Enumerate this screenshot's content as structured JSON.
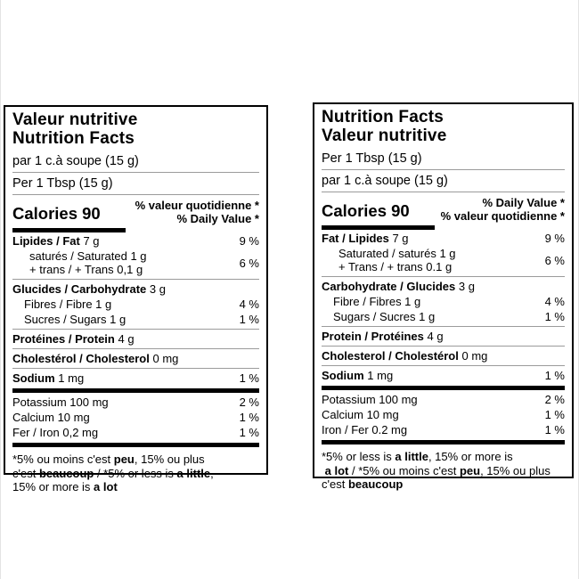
{
  "colors": {
    "background": "#ffffff",
    "label_border": "#000000",
    "thin_rule": "#9b9b9b",
    "thick_rule": "#000000",
    "text": "#000000"
  },
  "labels": [
    {
      "id": "french-first",
      "title_lines": [
        "Valeur nutritive",
        "Nutrition Facts"
      ],
      "serving_lines": [
        "par 1 c.à soupe (15 g)",
        "Per 1 Tbsp (15 g)"
      ],
      "calories": "Calories 90",
      "dv_header_lines": [
        "% valeur quotidienne *",
        "% Daily Value *"
      ],
      "rows": [
        {
          "kind": "nutrient",
          "indent": 0,
          "parts": [
            {
              "t": "Lipides / Fat",
              "b": true
            },
            {
              "t": " 7 g"
            }
          ],
          "value": "9 %"
        },
        {
          "kind": "nutrient2",
          "indent": 2,
          "lines": [
            "saturés / Saturated 1 g",
            "+ trans / + Trans 0,1 g"
          ],
          "value": "6 %"
        },
        {
          "kind": "rule-thin"
        },
        {
          "kind": "nutrient",
          "indent": 0,
          "parts": [
            {
              "t": "Glucides / Carbohydrate",
              "b": true
            },
            {
              "t": " 3 g"
            }
          ],
          "value": ""
        },
        {
          "kind": "nutrient",
          "indent": 1,
          "parts": [
            {
              "t": "Fibres / Fibre 1 g"
            }
          ],
          "value": "4 %"
        },
        {
          "kind": "nutrient",
          "indent": 1,
          "parts": [
            {
              "t": "Sucres / Sugars 1 g"
            }
          ],
          "value": "1 %"
        },
        {
          "kind": "rule-thin"
        },
        {
          "kind": "nutrient",
          "indent": 0,
          "parts": [
            {
              "t": "Protéines / Protein",
              "b": true
            },
            {
              "t": " 4 g"
            }
          ],
          "value": ""
        },
        {
          "kind": "rule-thin"
        },
        {
          "kind": "nutrient",
          "indent": 0,
          "parts": [
            {
              "t": "Cholestérol / Cholesterol",
              "b": true
            },
            {
              "t": " 0 mg"
            }
          ],
          "value": ""
        },
        {
          "kind": "rule-thin"
        },
        {
          "kind": "nutrient",
          "indent": 0,
          "parts": [
            {
              "t": "Sodium",
              "b": true
            },
            {
              "t": " 1 mg"
            }
          ],
          "value": "1 %"
        },
        {
          "kind": "rule-thick"
        },
        {
          "kind": "nutrient",
          "indent": 0,
          "parts": [
            {
              "t": "Potassium 100 mg"
            }
          ],
          "value": "2 %"
        },
        {
          "kind": "nutrient",
          "indent": 0,
          "parts": [
            {
              "t": "Calcium 10 mg"
            }
          ],
          "value": "1 %"
        },
        {
          "kind": "nutrient",
          "indent": 0,
          "parts": [
            {
              "t": "Fer / Iron 0,2 mg"
            }
          ],
          "value": "1 %"
        },
        {
          "kind": "rule-thick"
        }
      ],
      "footnote_lines": [
        [
          {
            "t": "*5% ou moins c'est "
          },
          {
            "t": "peu",
            "b": true
          },
          {
            "t": ", 15% ou plus"
          }
        ],
        [
          {
            "t": "c'est "
          },
          {
            "t": "beaucoup",
            "b": true
          },
          {
            "t": " / *5% or less is "
          },
          {
            "t": "a little",
            "b": true
          },
          {
            "t": ","
          }
        ],
        [
          {
            "t": "15% or more is "
          },
          {
            "t": "a lot",
            "b": true
          }
        ]
      ]
    },
    {
      "id": "english-first",
      "title_lines": [
        "Nutrition Facts",
        "Valeur nutritive"
      ],
      "serving_lines": [
        "Per 1 Tbsp (15 g)",
        "par 1 c.à soupe (15 g)"
      ],
      "calories": "Calories 90",
      "dv_header_lines": [
        "% Daily Value *",
        "% valeur quotidienne *"
      ],
      "rows": [
        {
          "kind": "nutrient",
          "indent": 0,
          "parts": [
            {
              "t": "Fat / Lipides",
              "b": true
            },
            {
              "t": " 7 g"
            }
          ],
          "value": "9 %"
        },
        {
          "kind": "nutrient2",
          "indent": 2,
          "lines": [
            "Saturated / saturés 1 g",
            "+ Trans / + trans 0.1 g"
          ],
          "value": "6 %"
        },
        {
          "kind": "rule-thin"
        },
        {
          "kind": "nutrient",
          "indent": 0,
          "parts": [
            {
              "t": "Carbohydrate / Glucides",
              "b": true
            },
            {
              "t": " 3 g"
            }
          ],
          "value": ""
        },
        {
          "kind": "nutrient",
          "indent": 1,
          "parts": [
            {
              "t": "Fibre / Fibres 1 g"
            }
          ],
          "value": "4 %"
        },
        {
          "kind": "nutrient",
          "indent": 1,
          "parts": [
            {
              "t": "Sugars / Sucres 1 g"
            }
          ],
          "value": "1 %"
        },
        {
          "kind": "rule-thin"
        },
        {
          "kind": "nutrient",
          "indent": 0,
          "parts": [
            {
              "t": "Protein / Protéines",
              "b": true
            },
            {
              "t": " 4 g"
            }
          ],
          "value": ""
        },
        {
          "kind": "rule-thin"
        },
        {
          "kind": "nutrient",
          "indent": 0,
          "parts": [
            {
              "t": "Cholesterol / Cholestérol",
              "b": true
            },
            {
              "t": " 0 mg"
            }
          ],
          "value": ""
        },
        {
          "kind": "rule-thin"
        },
        {
          "kind": "nutrient",
          "indent": 0,
          "parts": [
            {
              "t": "Sodium",
              "b": true
            },
            {
              "t": " 1 mg"
            }
          ],
          "value": "1 %"
        },
        {
          "kind": "rule-thick"
        },
        {
          "kind": "nutrient",
          "indent": 0,
          "parts": [
            {
              "t": "Potassium 100 mg"
            }
          ],
          "value": "2 %"
        },
        {
          "kind": "nutrient",
          "indent": 0,
          "parts": [
            {
              "t": "Calcium 10 mg"
            }
          ],
          "value": "1 %"
        },
        {
          "kind": "nutrient",
          "indent": 0,
          "parts": [
            {
              "t": "Iron / Fer 0.2 mg"
            }
          ],
          "value": "1 %"
        },
        {
          "kind": "rule-thick"
        }
      ],
      "footnote_lines": [
        [
          {
            "t": "*5% or less is "
          },
          {
            "t": "a little",
            "b": true
          },
          {
            "t": ", 15% or more is"
          }
        ],
        [
          {
            "t": " "
          },
          {
            "t": "a lot",
            "b": true
          },
          {
            "t": " / *5% ou moins c'est "
          },
          {
            "t": "peu",
            "b": true
          },
          {
            "t": ", 15% ou plus"
          }
        ],
        [
          {
            "t": "c'est "
          },
          {
            "t": "beaucoup",
            "b": true
          }
        ]
      ]
    }
  ]
}
